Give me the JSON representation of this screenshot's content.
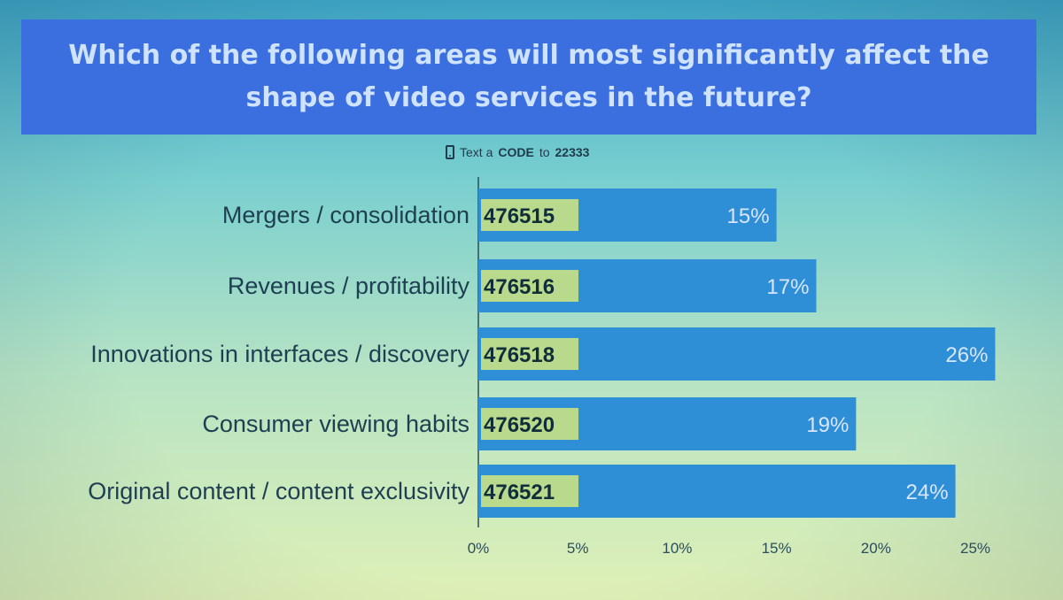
{
  "header": {
    "title": "Which of the following areas will most significantly affect the shape of video services in the future?"
  },
  "sms": {
    "prefix": "Text a",
    "code_word": "CODE",
    "to_word": "to",
    "number": "22333",
    "icon": "phone-icon"
  },
  "colors": {
    "title_bg": "#3b6fe0",
    "bar": "#2f8fd6",
    "code_bg": "#b9d98c"
  },
  "chart_data": {
    "type": "bar",
    "orientation": "horizontal",
    "title": "Which of the following areas will most significantly affect the shape of video services in the future?",
    "categories": [
      "Mergers / consolidation",
      "Revenues / profitability",
      "Innovations in interfaces / discovery",
      "Consumer viewing habits",
      "Original content / content exclusivity"
    ],
    "codes": [
      "476515",
      "476516",
      "476518",
      "476520",
      "476521"
    ],
    "values": [
      15,
      17,
      26,
      19,
      24
    ],
    "value_labels": [
      "15%",
      "17%",
      "26%",
      "19%",
      "24%"
    ],
    "xlim": [
      0,
      25
    ],
    "xticks": [
      0,
      5,
      10,
      15,
      20,
      25
    ],
    "xtick_labels": [
      "0%",
      "5%",
      "10%",
      "15%",
      "20%",
      "25%"
    ],
    "xlabel": "",
    "ylabel": "",
    "grid": false
  }
}
